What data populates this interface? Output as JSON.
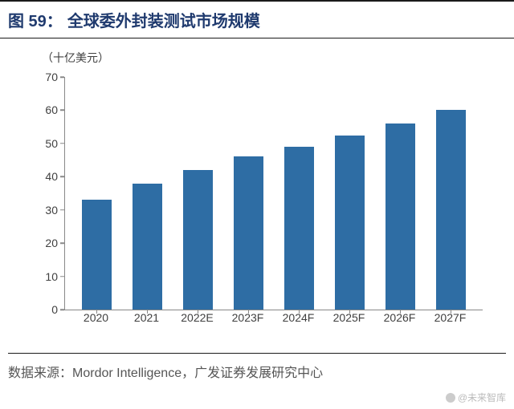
{
  "title": {
    "prefix": "图 59：",
    "text": "全球委外封装测试市场规模"
  },
  "unit_label": "（十亿美元）",
  "chart": {
    "type": "bar",
    "categories": [
      "2020",
      "2021",
      "2022E",
      "2023F",
      "2024F",
      "2025F",
      "2026F",
      "2027F"
    ],
    "values": [
      33,
      38,
      42,
      46,
      49,
      52.5,
      56,
      60
    ],
    "ylim": [
      0,
      70
    ],
    "ytick_step": 10,
    "yticks": [
      0,
      10,
      20,
      30,
      40,
      50,
      60,
      70
    ],
    "bar_color": "#2e6da4",
    "axis_color": "#888888",
    "label_fontsize": 14,
    "label_color": "#404040",
    "background_color": "#ffffff",
    "bar_width": 0.6
  },
  "source": {
    "label": "数据来源：",
    "text": "Mordor Intelligence，广发证券发展研究中心"
  },
  "watermark": "@未来智库"
}
